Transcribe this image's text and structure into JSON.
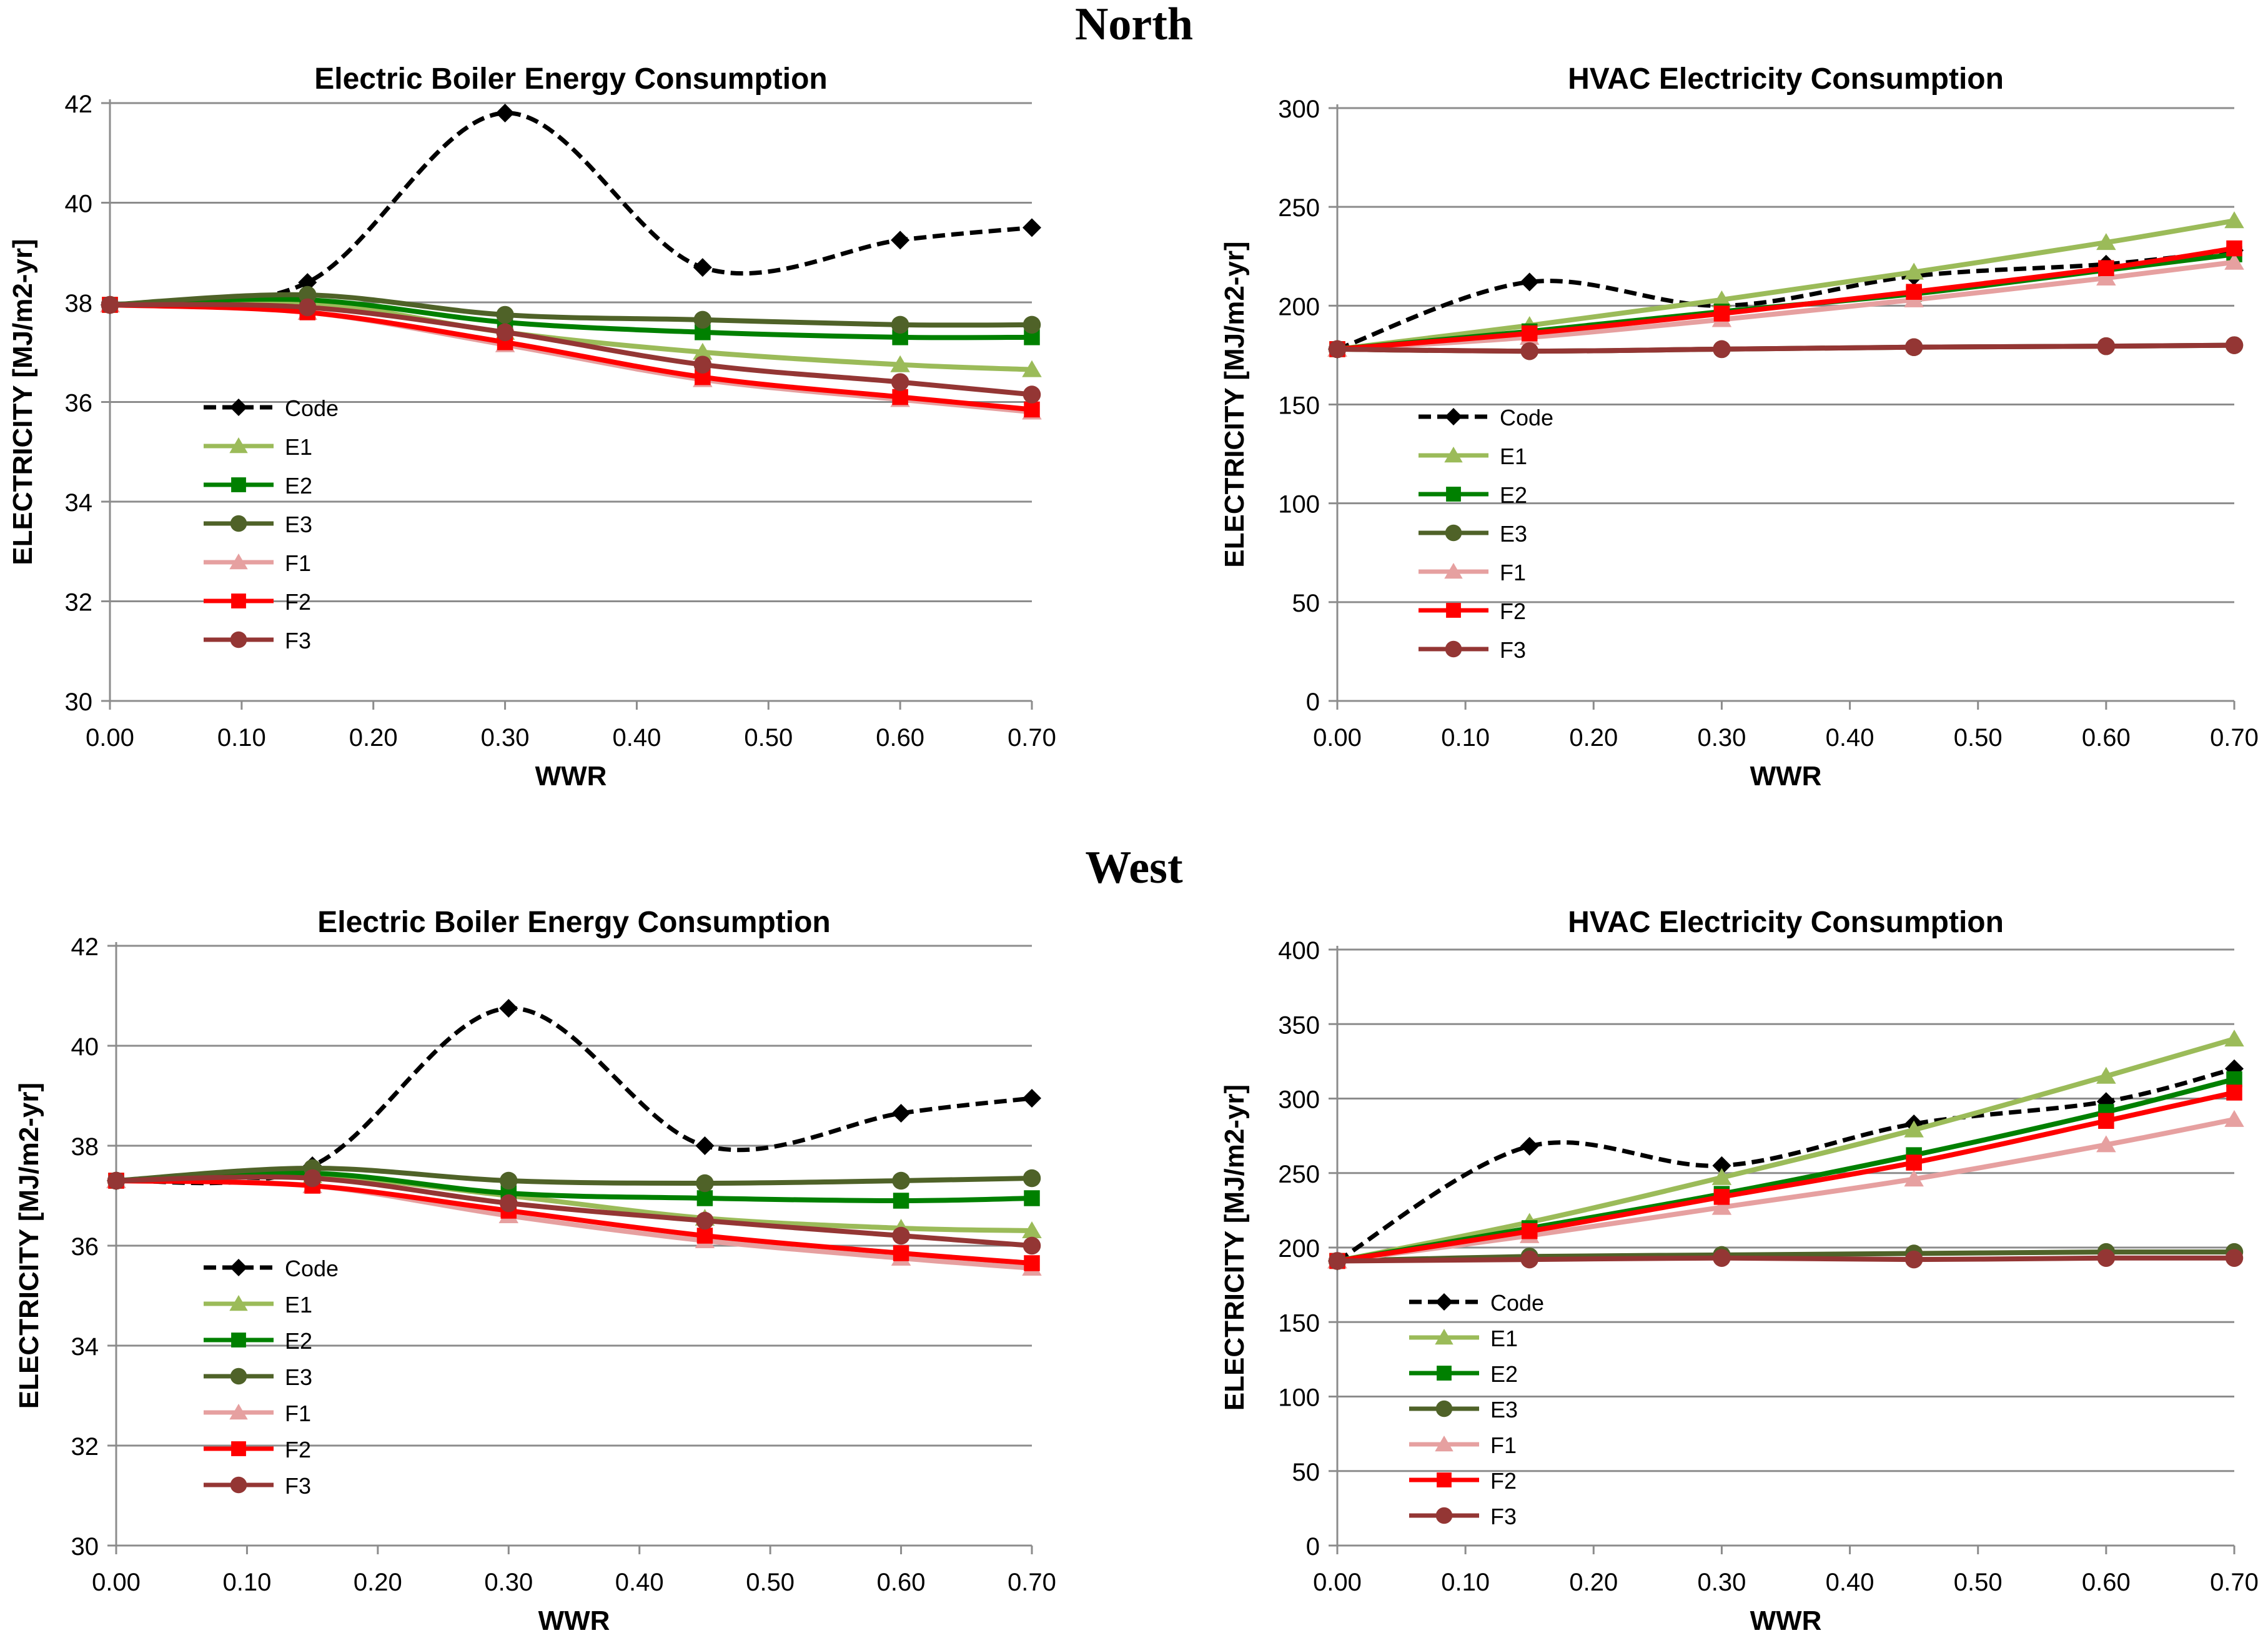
{
  "figure": {
    "sections": [
      {
        "title": "North"
      },
      {
        "title": "West"
      }
    ]
  },
  "series_styles": {
    "Code": {
      "color": "#000000",
      "marker": "diamond",
      "dash": true
    },
    "E1": {
      "color": "#9BBB59",
      "marker": "triangle",
      "dash": false
    },
    "E2": {
      "color": "#008000",
      "marker": "square",
      "dash": false
    },
    "E3": {
      "color": "#4F6228",
      "marker": "circle",
      "dash": false
    },
    "F1": {
      "color": "#E6A0A0",
      "marker": "triangle",
      "dash": false
    },
    "F2": {
      "color": "#FF0000",
      "marker": "square",
      "dash": false
    },
    "F3": {
      "color": "#943634",
      "marker": "circle",
      "dash": false
    }
  },
  "chart_data": [
    {
      "type": "line",
      "section": "North",
      "title": "Electric Boiler Energy Consumption",
      "xlabel": "WWR",
      "ylabel": "ELECTRICITY  [MJ/m2-yr]",
      "xlim": [
        0,
        0.7
      ],
      "ylim": [
        30,
        42
      ],
      "xticks": [
        "0.00",
        "0.10",
        "0.20",
        "0.30",
        "0.40",
        "0.50",
        "0.60",
        "0.70"
      ],
      "yticks": [
        "30",
        "32",
        "34",
        "36",
        "38",
        "40",
        "42"
      ],
      "grid": true,
      "legend": "left",
      "x": [
        0,
        0.15,
        0.3,
        0.45,
        0.6,
        0.7
      ],
      "series": [
        {
          "name": "Code",
          "values": [
            37.95,
            38.4,
            41.8,
            38.7,
            39.25,
            39.5
          ]
        },
        {
          "name": "E1",
          "values": [
            37.95,
            38.0,
            37.4,
            37.0,
            36.75,
            36.65
          ]
        },
        {
          "name": "E2",
          "values": [
            37.95,
            38.05,
            37.6,
            37.4,
            37.3,
            37.3
          ]
        },
        {
          "name": "E3",
          "values": [
            37.95,
            38.15,
            37.75,
            37.65,
            37.55,
            37.55
          ]
        },
        {
          "name": "F1",
          "values": [
            37.95,
            37.8,
            37.15,
            36.45,
            36.05,
            35.8
          ]
        },
        {
          "name": "F2",
          "values": [
            37.95,
            37.8,
            37.2,
            36.5,
            36.1,
            35.85
          ]
        },
        {
          "name": "F3",
          "values": [
            37.95,
            37.9,
            37.4,
            36.75,
            36.4,
            36.15
          ]
        }
      ]
    },
    {
      "type": "line",
      "section": "North",
      "title": "HVAC Electricity Consumption",
      "xlabel": "WWR",
      "ylabel": "ELECTRICITY  [MJ/m2-yr]",
      "xlim": [
        0,
        0.7
      ],
      "ylim": [
        0,
        300
      ],
      "xticks": [
        "0.00",
        "0.10",
        "0.20",
        "0.30",
        "0.40",
        "0.50",
        "0.60",
        "0.70"
      ],
      "yticks": [
        "0",
        "50",
        "100",
        "150",
        "200",
        "250",
        "300"
      ],
      "grid": true,
      "legend": "left",
      "x": [
        0,
        0.15,
        0.3,
        0.45,
        0.6,
        0.7
      ],
      "series": [
        {
          "name": "Code",
          "values": [
            178,
            212,
            200,
            215,
            221,
            228
          ]
        },
        {
          "name": "E1",
          "values": [
            178,
            190,
            203,
            217,
            232,
            243
          ]
        },
        {
          "name": "E2",
          "values": [
            178,
            187,
            197,
            206,
            218,
            226
          ]
        },
        {
          "name": "E3",
          "values": [
            178,
            177,
            178,
            179,
            179.5,
            180
          ]
        },
        {
          "name": "F1",
          "values": [
            178,
            184,
            193,
            203,
            214,
            222
          ]
        },
        {
          "name": "F2",
          "values": [
            178,
            186,
            196,
            207,
            219,
            229
          ]
        },
        {
          "name": "F3",
          "values": [
            178,
            177,
            178,
            179,
            179.5,
            180
          ]
        }
      ]
    },
    {
      "type": "line",
      "section": "West",
      "title": "Electric Boiler Energy Consumption",
      "xlabel": "WWR",
      "ylabel": "ELECTRICITY  [MJ/m2-yr]",
      "xlim": [
        0,
        0.7
      ],
      "ylim": [
        30,
        42
      ],
      "xticks": [
        "0.00",
        "0.10",
        "0.20",
        "0.30",
        "0.40",
        "0.50",
        "0.60",
        "0.70"
      ],
      "yticks": [
        "30",
        "32",
        "34",
        "36",
        "38",
        "40",
        "42"
      ],
      "grid": true,
      "legend": "left",
      "x": [
        0,
        0.15,
        0.3,
        0.45,
        0.6,
        0.7
      ],
      "series": [
        {
          "name": "Code",
          "values": [
            37.3,
            37.6,
            40.75,
            38.0,
            38.65,
            38.95
          ]
        },
        {
          "name": "E1",
          "values": [
            37.3,
            37.4,
            37.0,
            36.55,
            36.35,
            36.3
          ]
        },
        {
          "name": "E2",
          "values": [
            37.3,
            37.45,
            37.05,
            36.95,
            36.9,
            36.95
          ]
        },
        {
          "name": "E3",
          "values": [
            37.3,
            37.55,
            37.3,
            37.25,
            37.3,
            37.35
          ]
        },
        {
          "name": "F1",
          "values": [
            37.3,
            37.2,
            36.6,
            36.1,
            35.75,
            35.55
          ]
        },
        {
          "name": "F2",
          "values": [
            37.3,
            37.2,
            36.7,
            36.2,
            35.85,
            35.65
          ]
        },
        {
          "name": "F3",
          "values": [
            37.3,
            37.35,
            36.85,
            36.5,
            36.2,
            36.0
          ]
        }
      ]
    },
    {
      "type": "line",
      "section": "West",
      "title": "HVAC Electricity Consumption",
      "xlabel": "WWR",
      "ylabel": "ELECTRICITY  [MJ/m2-yr]",
      "xlim": [
        0,
        0.7
      ],
      "ylim": [
        0,
        400
      ],
      "xticks": [
        "0.00",
        "0.10",
        "0.20",
        "0.30",
        "0.40",
        "0.50",
        "0.60",
        "0.70"
      ],
      "yticks": [
        "0",
        "50",
        "100",
        "150",
        "200",
        "250",
        "300",
        "350",
        "400"
      ],
      "grid": true,
      "legend": "left",
      "x": [
        0,
        0.15,
        0.3,
        0.45,
        0.6,
        0.7
      ],
      "series": [
        {
          "name": "Code",
          "values": [
            191,
            268,
            255,
            283,
            298,
            320
          ]
        },
        {
          "name": "E1",
          "values": [
            191,
            217,
            247,
            279,
            315,
            340
          ]
        },
        {
          "name": "E2",
          "values": [
            191,
            213,
            236,
            262,
            291,
            313
          ]
        },
        {
          "name": "E3",
          "values": [
            191,
            194,
            195,
            196,
            197,
            197
          ]
        },
        {
          "name": "F1",
          "values": [
            191,
            208,
            227,
            246,
            269,
            286
          ]
        },
        {
          "name": "F2",
          "values": [
            191,
            211,
            234,
            257,
            285,
            304
          ]
        },
        {
          "name": "F3",
          "values": [
            191,
            192,
            193,
            192,
            193,
            193
          ]
        }
      ]
    }
  ]
}
